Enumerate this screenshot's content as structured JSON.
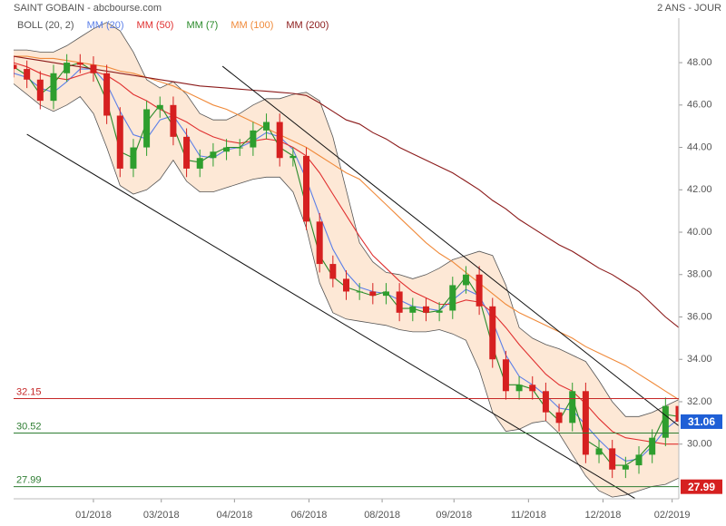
{
  "chart_data": {
    "type": "candlestick",
    "title": "SAINT GOBAIN - abcbourse.com",
    "subtitle": "2 ANS - JOUR",
    "x": [
      0,
      10,
      20,
      30,
      40,
      50,
      60,
      70,
      80,
      90,
      100,
      110,
      120,
      130,
      140,
      150,
      160,
      170,
      180,
      190,
      200,
      210,
      220,
      230,
      240,
      250,
      260,
      270,
      280,
      290,
      300,
      310,
      320,
      330,
      340,
      350,
      360,
      370,
      380,
      390,
      400,
      410,
      420,
      430,
      440,
      450,
      460,
      470,
      480,
      490,
      500
    ],
    "xlim": [
      0,
      500
    ],
    "xticks": [
      {
        "value": 60,
        "label": "01/2018"
      },
      {
        "value": 111,
        "label": "03/2018"
      },
      {
        "value": 166,
        "label": "04/2018"
      },
      {
        "value": 222,
        "label": "06/2018"
      },
      {
        "value": 277,
        "label": "08/2018"
      },
      {
        "value": 331,
        "label": "09/2018"
      },
      {
        "value": 387,
        "label": "11/2018"
      },
      {
        "value": 443,
        "label": "12/2018"
      },
      {
        "value": 495,
        "label": "02/2019"
      }
    ],
    "ylim": [
      27.42,
      50.1
    ],
    "yticks": [
      {
        "value": 30,
        "label": "30.00"
      },
      {
        "value": 32,
        "label": "32.00"
      },
      {
        "value": 34,
        "label": "34.00"
      },
      {
        "value": 36,
        "label": "36.00"
      },
      {
        "value": 38,
        "label": "38.00"
      },
      {
        "value": 40,
        "label": "40.00"
      },
      {
        "value": 42,
        "label": "42.00"
      },
      {
        "value": 44,
        "label": "44.00"
      },
      {
        "value": 46,
        "label": "46.00"
      },
      {
        "value": 48,
        "label": "48.00"
      }
    ],
    "candles": {
      "up_color": "#2e9e2e",
      "down_color": "#d62020",
      "open": [
        47.9,
        47.7,
        47.2,
        46.2,
        47.5,
        48.0,
        47.9,
        47.5,
        45.5,
        43.0,
        44.0,
        45.8,
        46.0,
        44.5,
        43.0,
        43.5,
        43.8,
        44.0,
        44.0,
        44.8,
        45.2,
        43.5,
        43.6,
        40.5,
        38.5,
        37.8,
        37.2,
        37.2,
        37.0,
        37.2,
        36.2,
        36.5,
        36.2,
        36.3,
        37.5,
        38.0,
        36.5,
        34.0,
        32.5,
        32.8,
        32.5,
        31.5,
        31.0,
        32.5,
        29.5,
        29.8,
        28.8,
        29.0,
        29.5,
        30.3,
        31.8
      ],
      "high": [
        48.3,
        48.1,
        47.6,
        47.9,
        48.4,
        48.4,
        48.3,
        47.9,
        45.9,
        44.4,
        46.2,
        46.4,
        46.4,
        44.9,
        43.9,
        44.2,
        44.4,
        44.4,
        45.2,
        45.6,
        45.6,
        44.0,
        44.0,
        40.9,
        38.9,
        38.2,
        37.6,
        37.6,
        37.6,
        37.6,
        36.9,
        36.9,
        36.7,
        37.9,
        38.4,
        38.4,
        36.9,
        34.4,
        33.2,
        33.2,
        32.9,
        31.9,
        32.9,
        32.9,
        30.2,
        30.2,
        29.4,
        29.9,
        30.7,
        32.2,
        32.2
      ],
      "low": [
        47.3,
        46.8,
        45.8,
        45.8,
        47.1,
        47.5,
        47.1,
        45.1,
        42.6,
        42.6,
        43.6,
        45.4,
        44.1,
        42.6,
        42.6,
        43.1,
        43.4,
        43.6,
        43.6,
        44.4,
        43.1,
        43.1,
        40.1,
        38.1,
        37.4,
        36.8,
        36.8,
        36.6,
        36.6,
        35.8,
        35.8,
        35.8,
        35.8,
        35.9,
        37.1,
        36.1,
        33.6,
        32.1,
        32.1,
        32.1,
        31.1,
        30.6,
        30.6,
        29.1,
        29.1,
        28.4,
        28.4,
        28.6,
        29.1,
        29.9,
        30.66
      ],
      "close": [
        47.7,
        47.2,
        46.2,
        47.5,
        48.0,
        47.9,
        47.5,
        45.5,
        43.0,
        44.0,
        45.8,
        46.0,
        44.5,
        43.0,
        43.5,
        43.8,
        44.0,
        44.0,
        44.8,
        45.2,
        43.5,
        43.6,
        40.5,
        38.5,
        37.8,
        37.2,
        37.2,
        37.0,
        37.2,
        36.2,
        36.5,
        36.2,
        36.3,
        37.5,
        38.0,
        36.5,
        34.0,
        32.5,
        32.8,
        32.5,
        31.5,
        31.0,
        32.5,
        29.5,
        29.8,
        28.8,
        29.0,
        29.5,
        30.3,
        31.8,
        31.06
      ]
    },
    "bollinger": {
      "name": "BOLL (20, 2)",
      "color": "#555555",
      "fill": "#fde2cc",
      "upper": [
        48.6,
        48.6,
        48.5,
        48.5,
        48.8,
        49.2,
        49.6,
        49.9,
        49.5,
        48.5,
        47.2,
        46.8,
        47.1,
        46.5,
        45.6,
        45.3,
        45.3,
        45.6,
        46.0,
        46.3,
        46.3,
        46.5,
        46.6,
        46.2,
        44.5,
        42.0,
        39.5,
        38.6,
        38.1,
        38.0,
        37.8,
        38.0,
        38.3,
        38.7,
        38.9,
        39.1,
        38.9,
        37.5,
        35.5,
        35.0,
        34.7,
        34.5,
        34.2,
        33.9,
        33.0,
        32.0,
        31.3,
        31.3,
        31.5,
        31.8,
        32.1
      ],
      "lower": [
        47.0,
        46.5,
        46.0,
        45.7,
        46.0,
        46.4,
        45.6,
        44.0,
        42.2,
        41.8,
        42.0,
        42.5,
        43.4,
        42.4,
        41.9,
        41.9,
        42.1,
        42.3,
        42.5,
        42.6,
        42.6,
        41.9,
        40.2,
        37.6,
        36.2,
        35.9,
        35.8,
        35.7,
        35.6,
        35.4,
        35.3,
        35.3,
        35.4,
        35.2,
        34.9,
        33.5,
        31.5,
        30.6,
        30.7,
        31.0,
        31.1,
        30.5,
        29.5,
        28.5,
        27.8,
        27.5,
        27.6,
        27.8,
        28.0,
        28.1,
        28.4
      ]
    },
    "series": [
      {
        "name": "MM (20)",
        "color": "#5b7fe8",
        "values": [
          47.5,
          47.3,
          46.8,
          46.6,
          47.1,
          47.7,
          47.7,
          47.0,
          45.7,
          44.6,
          44.4,
          45.3,
          45.5,
          44.6,
          43.6,
          43.5,
          43.9,
          44.0,
          44.3,
          44.7,
          44.5,
          43.9,
          42.5,
          40.8,
          39.2,
          38.1,
          37.4,
          37.2,
          37.1,
          36.8,
          36.5,
          36.4,
          36.3,
          36.8,
          37.3,
          37.0,
          35.8,
          34.2,
          33.2,
          32.8,
          32.3,
          31.7,
          31.6,
          30.9,
          30.2,
          29.6,
          29.2,
          29.3,
          29.9,
          30.7,
          31.2
        ]
      },
      {
        "name": "MM (50)",
        "color": "#e03030",
        "values": [
          48.0,
          47.8,
          47.5,
          47.3,
          47.2,
          47.4,
          47.6,
          47.4,
          47.0,
          46.5,
          46.2,
          45.8,
          45.5,
          45.2,
          44.8,
          44.5,
          44.3,
          44.2,
          44.3,
          44.4,
          44.3,
          44.0,
          43.6,
          42.8,
          41.8,
          40.8,
          39.8,
          38.9,
          38.3,
          37.7,
          37.2,
          36.9,
          36.6,
          36.6,
          36.8,
          36.7,
          36.2,
          35.5,
          34.7,
          34.0,
          33.3,
          32.8,
          32.5,
          31.9,
          31.2,
          30.6,
          30.3,
          30.2,
          30.1,
          30.0,
          30.0
        ]
      },
      {
        "name": "MM (7)",
        "color": "#2a8a2a",
        "values": [
          47.8,
          47.4,
          46.5,
          47.0,
          47.8,
          48.0,
          47.6,
          46.2,
          43.8,
          43.5,
          45.2,
          46.0,
          45.0,
          43.4,
          43.3,
          43.7,
          44.0,
          44.0,
          44.6,
          45.1,
          44.0,
          43.6,
          41.2,
          38.9,
          37.9,
          37.4,
          37.2,
          37.0,
          37.2,
          36.4,
          36.4,
          36.2,
          36.3,
          37.1,
          37.9,
          36.9,
          34.6,
          32.8,
          32.8,
          32.6,
          31.7,
          31.1,
          32.2,
          30.2,
          29.8,
          29.0,
          29.0,
          29.4,
          30.1,
          31.4,
          31.3
        ]
      },
      {
        "name": "MM (100)",
        "color": "#f08a3a",
        "values": [
          48.3,
          48.3,
          48.2,
          48.2,
          48.1,
          48.0,
          47.9,
          47.8,
          47.6,
          47.5,
          47.3,
          47.1,
          46.9,
          46.6,
          46.3,
          46.0,
          45.8,
          45.5,
          45.2,
          44.9,
          44.6,
          44.3,
          44.0,
          43.6,
          43.2,
          42.8,
          42.5,
          41.9,
          41.3,
          40.7,
          40.1,
          39.5,
          39.0,
          38.6,
          38.1,
          37.6,
          37.1,
          36.6,
          36.2,
          35.9,
          35.6,
          35.3,
          35.0,
          34.6,
          34.3,
          34.0,
          33.7,
          33.3,
          32.9,
          32.5,
          32.1
        ]
      },
      {
        "name": "MM (200)",
        "color": "#8b1a1a",
        "values": [
          48.3,
          48.2,
          48.1,
          48.0,
          47.9,
          47.8,
          47.7,
          47.6,
          47.5,
          47.4,
          47.3,
          47.2,
          47.1,
          47.0,
          46.9,
          46.85,
          46.8,
          46.75,
          46.7,
          46.65,
          46.6,
          46.55,
          46.45,
          46.1,
          45.7,
          45.3,
          45.1,
          44.7,
          44.4,
          44.0,
          43.7,
          43.4,
          43.1,
          42.8,
          42.4,
          42.0,
          41.5,
          41.1,
          40.6,
          40.2,
          39.8,
          39.4,
          39.1,
          38.7,
          38.3,
          38.0,
          37.6,
          37.2,
          36.6,
          36.0,
          35.5
        ]
      }
    ],
    "trendlines": [
      {
        "color": "#111111",
        "x": [
          157,
          500
        ],
        "y": [
          47.83,
          30.86
        ]
      },
      {
        "color": "#111111",
        "x": [
          10,
          467
        ],
        "y": [
          44.62,
          27.44
        ]
      }
    ],
    "levels": [
      {
        "value": 32.15,
        "color": "#c62828"
      },
      {
        "value": 30.52,
        "color": "#2e7d32"
      },
      {
        "value": 27.99,
        "color": "#2e7d32"
      }
    ],
    "price_tags": [
      {
        "value": 31.06,
        "color": "#1f5fd6"
      },
      {
        "value": 27.99,
        "color": "#d62020"
      }
    ]
  }
}
